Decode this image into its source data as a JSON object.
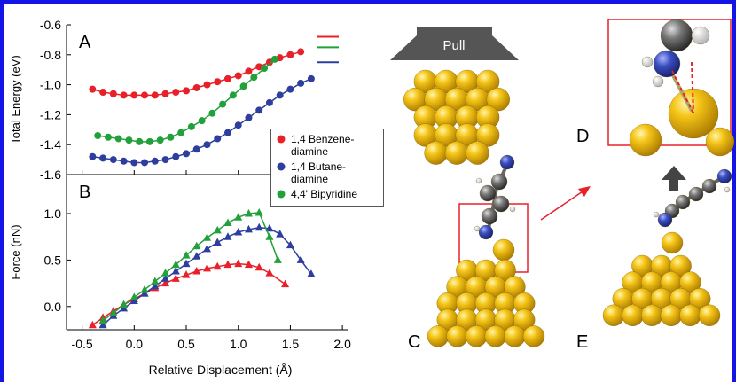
{
  "chart_data": [
    {
      "type": "line",
      "panel_label": "A",
      "y_label": "Total Energy (eV)",
      "xlim": [
        -0.65,
        2.05
      ],
      "xticks": [
        -0.5,
        0,
        0.5,
        1,
        1.5,
        2
      ],
      "ylim": [
        -1.6,
        -0.6
      ],
      "yticks": [
        -0.6,
        -0.8,
        {
          "value": -1,
          "label": "-1.0"
        },
        -1.2,
        -1.4,
        -1.6
      ],
      "marker": "circle",
      "series": [
        {
          "name": "1,4 Benzene-diamine",
          "color": "#e8202a",
          "level": -0.68,
          "x": [
            -0.4,
            -0.3,
            -0.2,
            -0.1,
            0,
            0.1,
            0.2,
            0.3,
            0.4,
            0.5,
            0.6,
            0.7,
            0.8,
            0.9,
            1,
            1.1,
            1.2,
            1.3,
            1.4,
            1.5,
            1.6
          ],
          "values": [
            -1.03,
            -1.05,
            -1.06,
            -1.07,
            -1.07,
            -1.07,
            -1.07,
            -1.06,
            -1.05,
            -1.04,
            -1.02,
            -1,
            -0.98,
            -0.96,
            -0.94,
            -0.91,
            -0.88,
            -0.85,
            -0.82,
            -0.8,
            -0.78
          ]
        },
        {
          "name": "1,4 Butane-diamine",
          "color": "#2e3e9e",
          "level": -0.85,
          "x": [
            -0.4,
            -0.3,
            -0.2,
            -0.1,
            0,
            0.1,
            0.2,
            0.3,
            0.4,
            0.5,
            0.6,
            0.7,
            0.8,
            0.9,
            1,
            1.1,
            1.2,
            1.3,
            1.4,
            1.5,
            1.6,
            1.7
          ],
          "values": [
            -1.48,
            -1.49,
            -1.5,
            -1.51,
            -1.52,
            -1.52,
            -1.51,
            -1.5,
            -1.48,
            -1.46,
            -1.43,
            -1.4,
            -1.36,
            -1.32,
            -1.27,
            -1.22,
            -1.17,
            -1.12,
            -1.07,
            -1.03,
            -0.99,
            -0.96
          ]
        },
        {
          "name": "4,4' Bipyridine",
          "color": "#22a03a",
          "level": -0.75,
          "x": [
            -0.35,
            -0.25,
            -0.15,
            -0.05,
            0.05,
            0.15,
            0.25,
            0.35,
            0.45,
            0.55,
            0.65,
            0.75,
            0.85,
            0.95,
            1.05,
            1.15,
            1.25,
            1.35
          ],
          "values": [
            -1.34,
            -1.35,
            -1.36,
            -1.37,
            -1.38,
            -1.38,
            -1.37,
            -1.35,
            -1.32,
            -1.28,
            -1.24,
            -1.19,
            -1.13,
            -1.07,
            -1.01,
            -0.95,
            -0.89,
            -0.83
          ]
        }
      ]
    },
    {
      "type": "line",
      "panel_label": "B",
      "y_label": "Force (nN)",
      "x_label": "Relative Displacement (Å)",
      "xlim": [
        -0.65,
        2.05
      ],
      "xticks": [
        -0.5,
        {
          "value": 0,
          "label": "0.0"
        },
        0.5,
        {
          "value": 1,
          "label": "1.0"
        },
        1.5,
        {
          "value": 2,
          "label": "2.0"
        }
      ],
      "ylim": [
        -0.25,
        1.42
      ],
      "yticks": [
        {
          "value": 0,
          "label": "0.0"
        },
        0.5,
        {
          "value": 1,
          "label": "1.0"
        }
      ],
      "marker": "triangle",
      "series": [
        {
          "color": "#e8202a",
          "x": [
            -0.4,
            -0.3,
            -0.2,
            -0.1,
            0,
            0.1,
            0.2,
            0.3,
            0.4,
            0.5,
            0.6,
            0.7,
            0.8,
            0.9,
            1,
            1.1,
            1.2,
            1.3,
            1.45
          ],
          "values": [
            -0.2,
            -0.12,
            -0.05,
            0.02,
            0.08,
            0.14,
            0.2,
            0.25,
            0.3,
            0.34,
            0.38,
            0.41,
            0.43,
            0.45,
            0.46,
            0.45,
            0.42,
            0.36,
            0.24
          ]
        },
        {
          "color": "#2e3e9e",
          "x": [
            -0.3,
            -0.2,
            -0.1,
            0,
            0.1,
            0.2,
            0.3,
            0.4,
            0.5,
            0.6,
            0.7,
            0.8,
            0.9,
            1,
            1.1,
            1.2,
            1.3,
            1.4,
            1.5,
            1.6,
            1.7
          ],
          "values": [
            -0.2,
            -0.1,
            -0.02,
            0.06,
            0.14,
            0.22,
            0.3,
            0.38,
            0.46,
            0.54,
            0.62,
            0.69,
            0.75,
            0.8,
            0.83,
            0.85,
            0.84,
            0.78,
            0.66,
            0.5,
            0.35
          ]
        },
        {
          "color": "#22a03a",
          "x": [
            -0.3,
            -0.2,
            -0.1,
            0,
            0.1,
            0.2,
            0.3,
            0.4,
            0.5,
            0.6,
            0.7,
            0.8,
            0.9,
            1,
            1.1,
            1.2,
            1.3,
            1.38
          ],
          "values": [
            -0.15,
            -0.07,
            0.02,
            0.1,
            0.18,
            0.27,
            0.36,
            0.45,
            0.55,
            0.65,
            0.74,
            0.82,
            0.9,
            0.96,
            1,
            1.01,
            0.75,
            0.5
          ]
        }
      ]
    }
  ],
  "illustration": {
    "pull": "Pull",
    "labels": [
      "C",
      "D",
      "E"
    ]
  }
}
